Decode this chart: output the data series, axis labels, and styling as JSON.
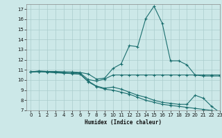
{
  "xlabel": "Humidex (Indice chaleur)",
  "bg_color": "#cce8e8",
  "grid_color": "#aacccc",
  "line_color": "#1a6e6e",
  "xlim": [
    -0.5,
    23
  ],
  "ylim": [
    7,
    17.5
  ],
  "yticks": [
    7,
    8,
    9,
    10,
    11,
    12,
    13,
    14,
    15,
    16,
    17
  ],
  "xticks": [
    0,
    1,
    2,
    3,
    4,
    5,
    6,
    7,
    8,
    9,
    10,
    11,
    12,
    13,
    14,
    15,
    16,
    17,
    18,
    19,
    20,
    21,
    22,
    23
  ],
  "line1_x": [
    0,
    1,
    2,
    3,
    4,
    5,
    6,
    7,
    8,
    9,
    10,
    11,
    12,
    13,
    14,
    15,
    16,
    17,
    18,
    19,
    20,
    21,
    22,
    23
  ],
  "line1_y": [
    10.8,
    10.9,
    10.85,
    10.85,
    10.8,
    10.8,
    10.75,
    10.6,
    10.1,
    10.2,
    11.15,
    11.6,
    13.4,
    13.3,
    16.1,
    17.3,
    15.6,
    11.9,
    11.9,
    11.5,
    10.5,
    10.4,
    10.4,
    10.4
  ],
  "line2_x": [
    0,
    1,
    2,
    3,
    4,
    5,
    6,
    7,
    8,
    9,
    10,
    11,
    12,
    13,
    14,
    15,
    16,
    17,
    18,
    19,
    20,
    21,
    22,
    23
  ],
  "line2_y": [
    10.8,
    10.85,
    10.85,
    10.8,
    10.8,
    10.75,
    10.7,
    10.05,
    9.9,
    10.1,
    10.5,
    10.5,
    10.5,
    10.5,
    10.5,
    10.5,
    10.5,
    10.5,
    10.5,
    10.5,
    10.5,
    10.5,
    10.5,
    10.5
  ],
  "line3_x": [
    0,
    1,
    2,
    3,
    4,
    5,
    6,
    7,
    8,
    9,
    10,
    11,
    12,
    13,
    14,
    15,
    16,
    17,
    18,
    19,
    20,
    21,
    22,
    23
  ],
  "line3_y": [
    10.8,
    10.85,
    10.8,
    10.75,
    10.7,
    10.65,
    10.6,
    9.9,
    9.4,
    9.2,
    9.3,
    9.1,
    8.8,
    8.5,
    8.3,
    8.0,
    7.8,
    7.7,
    7.6,
    7.6,
    8.5,
    8.2,
    7.4,
    6.8
  ],
  "line4_x": [
    0,
    1,
    2,
    3,
    4,
    5,
    6,
    7,
    8,
    9,
    10,
    11,
    12,
    13,
    14,
    15,
    16,
    17,
    18,
    19,
    20,
    21,
    22,
    23
  ],
  "line4_y": [
    10.8,
    10.82,
    10.78,
    10.72,
    10.68,
    10.63,
    10.58,
    9.82,
    9.35,
    9.1,
    9.0,
    8.8,
    8.6,
    8.3,
    8.0,
    7.8,
    7.6,
    7.5,
    7.4,
    7.3,
    7.2,
    7.1,
    7.0,
    6.8
  ]
}
